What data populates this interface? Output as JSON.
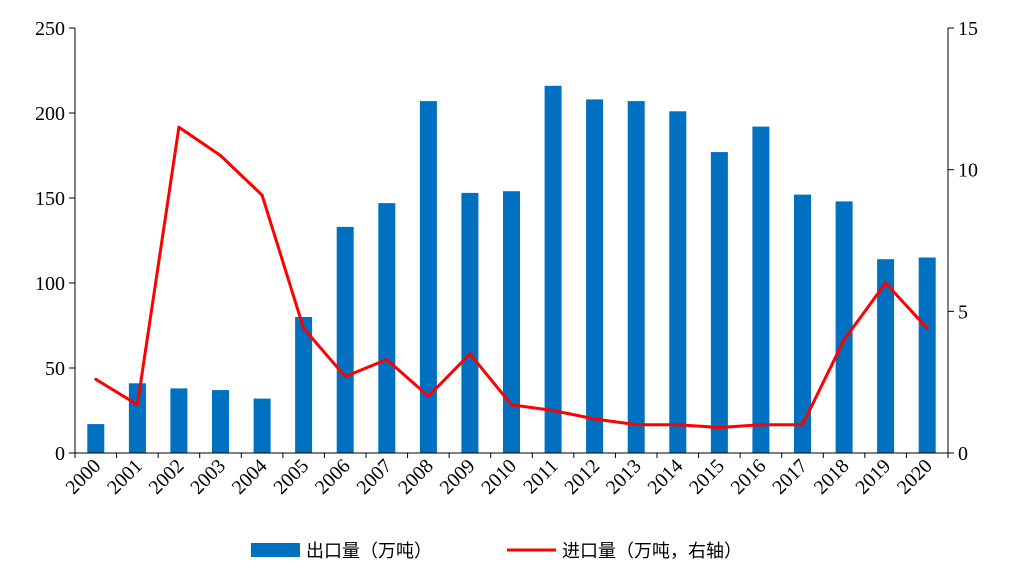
{
  "chart_data": {
    "type": "bar+line",
    "categories": [
      "2000",
      "2001",
      "2002",
      "2003",
      "2004",
      "2005",
      "2006",
      "2007",
      "2008",
      "2009",
      "2010",
      "2011",
      "2012",
      "2013",
      "2014",
      "2015",
      "2016",
      "2017",
      "2018",
      "2019",
      "2020"
    ],
    "series": [
      {
        "name": "出口量（万吨）",
        "type": "bar",
        "axis": "left",
        "color": "#0070C0",
        "values": [
          17,
          41,
          38,
          37,
          32,
          80,
          133,
          147,
          207,
          153,
          154,
          216,
          208,
          207,
          201,
          177,
          192,
          152,
          148,
          114,
          115
        ]
      },
      {
        "name": "进口量（万吨，右轴）",
        "type": "line",
        "axis": "right",
        "color": "#FF0000",
        "values": [
          2.6,
          1.7,
          11.5,
          10.5,
          9.1,
          4.4,
          2.7,
          3.3,
          2.0,
          3.5,
          1.7,
          1.5,
          1.2,
          1.0,
          1.0,
          0.9,
          1.0,
          1.0,
          4.0,
          6.0,
          4.4
        ]
      }
    ],
    "y_left": {
      "min": 0,
      "max": 250,
      "ticks": [
        "0",
        "50",
        "100",
        "150",
        "200",
        "250"
      ]
    },
    "y_right": {
      "min": 0,
      "max": 15,
      "ticks": [
        "0",
        "5",
        "10",
        "15"
      ]
    },
    "legend": {
      "position": "bottom",
      "bar_label": "出口量（万吨）",
      "line_label": "进口量（万吨，右轴）"
    }
  }
}
